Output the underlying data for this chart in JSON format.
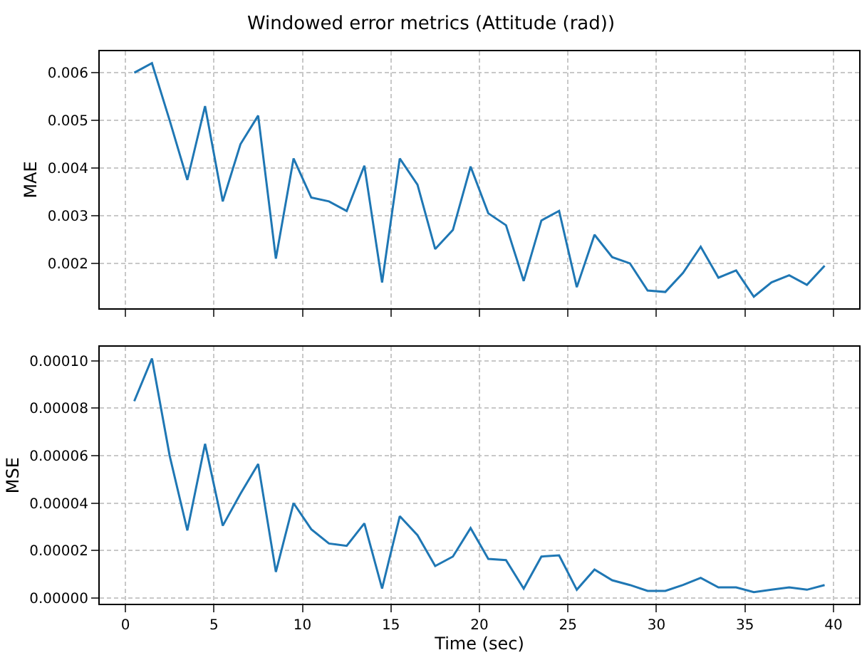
{
  "chart_data": [
    {
      "type": "line",
      "title": "Windowed error metrics (Attitude (rad))",
      "ylabel": "MAE",
      "tick_labels": "y",
      "grid": true,
      "x": [
        0.5,
        1.5,
        2.5,
        3.5,
        4.5,
        5.5,
        6.5,
        7.5,
        8.5,
        9.5,
        10.5,
        11.5,
        12.5,
        13.5,
        14.5,
        15.5,
        16.5,
        17.5,
        18.5,
        19.5,
        20.5,
        21.5,
        22.5,
        23.5,
        24.5,
        25.5,
        26.5,
        27.5,
        28.5,
        29.5,
        30.5,
        31.5,
        32.5,
        33.5,
        34.5,
        35.5,
        36.5,
        37.5,
        38.5,
        39.5
      ],
      "series": [
        {
          "color": "#1f77b4",
          "values": [
            0.006,
            0.0062,
            0.005,
            0.00375,
            0.0053,
            0.0033,
            0.0045,
            0.0051,
            0.0021,
            0.0042,
            0.00338,
            0.0033,
            0.0031,
            0.00405,
            0.0016,
            0.0042,
            0.00365,
            0.0023,
            0.0027,
            0.00403,
            0.00305,
            0.0028,
            0.00163,
            0.0029,
            0.0031,
            0.0015,
            0.0026,
            0.00213,
            0.002,
            0.00143,
            0.0014,
            0.0018,
            0.00235,
            0.0017,
            0.00185,
            0.0013,
            0.0016,
            0.00175,
            0.00155,
            0.00195
          ]
        }
      ],
      "xlim": [
        -1.45,
        41.45
      ],
      "xticks": [
        0,
        5,
        10,
        15,
        20,
        25,
        30,
        35,
        40
      ],
      "ylim": [
        0.00106,
        0.00645
      ],
      "yticks": [
        0.002,
        0.003,
        0.004,
        0.005,
        0.006
      ]
    },
    {
      "type": "line",
      "xlabel": "Time (sec)",
      "ylabel": "MSE",
      "grid": true,
      "x": [
        0.5,
        1.5,
        2.5,
        3.5,
        4.5,
        5.5,
        6.5,
        7.5,
        8.5,
        9.5,
        10.5,
        11.5,
        12.5,
        13.5,
        14.5,
        15.5,
        16.5,
        17.5,
        18.5,
        19.5,
        20.5,
        21.5,
        22.5,
        23.5,
        24.5,
        25.5,
        26.5,
        27.5,
        28.5,
        29.5,
        30.5,
        31.5,
        32.5,
        33.5,
        34.5,
        35.5,
        36.5,
        37.5,
        38.5,
        39.5
      ],
      "series": [
        {
          "color": "#1f77b4",
          "values": [
            8.3e-05,
            0.000101,
            6e-05,
            2.85e-05,
            6.5e-05,
            3.05e-05,
            4.4e-05,
            5.65e-05,
            1.1e-05,
            4e-05,
            2.9e-05,
            2.3e-05,
            2.2e-05,
            3.15e-05,
            4e-06,
            3.45e-05,
            2.65e-05,
            1.35e-05,
            1.75e-05,
            2.95e-05,
            1.65e-05,
            1.6e-05,
            4e-06,
            1.75e-05,
            1.8e-05,
            3.5e-06,
            1.2e-05,
            7.5e-06,
            5.5e-06,
            3e-06,
            3e-06,
            5.5e-06,
            8.5e-06,
            4.5e-06,
            4.5e-06,
            2.5e-06,
            3.5e-06,
            4.5e-06,
            3.5e-06,
            5.5e-06
          ]
        }
      ],
      "xlim": [
        -1.45,
        41.45
      ],
      "xticks": [
        0,
        5,
        10,
        15,
        20,
        25,
        30,
        35,
        40
      ],
      "ylim": [
        -2.4e-06,
        0.0001059
      ],
      "yticks": [
        {
          "value": 0,
          "label": "0.00000"
        },
        {
          "value": 2e-05,
          "label": "0.00002"
        },
        {
          "value": 4e-05,
          "label": "0.00004"
        },
        {
          "value": 6e-05,
          "label": "0.00006"
        },
        {
          "value": 8e-05,
          "label": "0.00008"
        },
        {
          "value": 0.0001,
          "label": "0.00010"
        }
      ]
    }
  ]
}
